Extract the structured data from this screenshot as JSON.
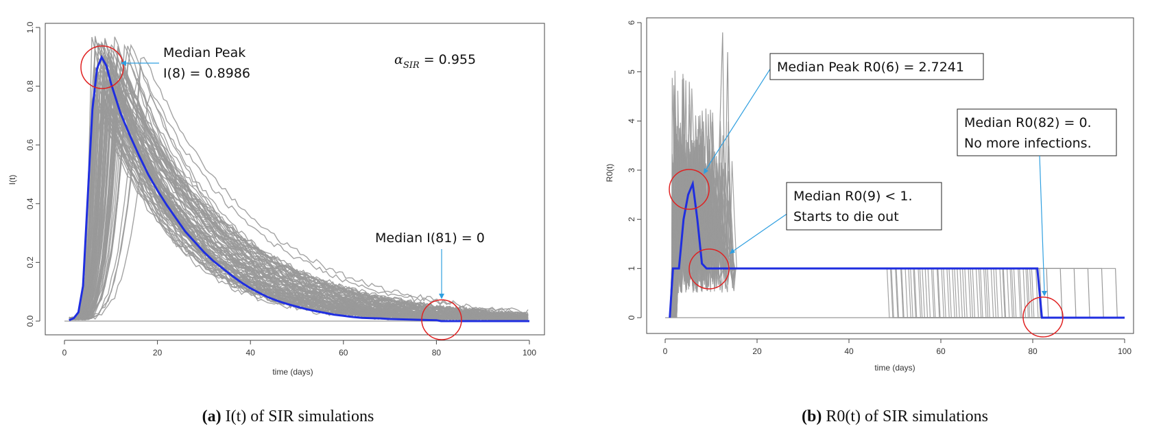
{
  "chart_data": [
    {
      "type": "line",
      "panel": "a",
      "xlabel": "time (days)",
      "ylabel": "I(t)",
      "xlim": [
        0,
        100
      ],
      "ylim": [
        0,
        1.0
      ],
      "xticks": [
        "0",
        "20",
        "40",
        "60",
        "80",
        "100"
      ],
      "xtick_values": [
        0,
        20,
        40,
        60,
        80,
        100
      ],
      "yticks": [
        "0.0",
        "0.2",
        "0.4",
        "0.6",
        "0.8",
        "1.0"
      ],
      "ytick_values": [
        0,
        0.2,
        0.4,
        0.6,
        0.8,
        1.0
      ],
      "series": [
        {
          "name": "Median",
          "color": "#1f2ee0",
          "x": [
            1,
            2,
            3,
            4,
            5,
            6,
            7,
            8,
            9,
            10,
            11,
            12,
            14,
            16,
            18,
            20,
            22,
            24,
            26,
            28,
            30,
            32,
            34,
            36,
            38,
            40,
            42,
            44,
            46,
            48,
            50,
            52,
            54,
            56,
            58,
            60,
            62,
            64,
            66,
            68,
            70,
            75,
            80,
            81,
            85,
            90,
            95,
            100
          ],
          "values": [
            0.003,
            0.01,
            0.03,
            0.12,
            0.42,
            0.72,
            0.86,
            0.8986,
            0.87,
            0.81,
            0.76,
            0.71,
            0.635,
            0.565,
            0.5,
            0.445,
            0.395,
            0.35,
            0.305,
            0.27,
            0.235,
            0.205,
            0.18,
            0.155,
            0.132,
            0.112,
            0.095,
            0.08,
            0.068,
            0.058,
            0.049,
            0.041,
            0.034,
            0.028,
            0.022,
            0.018,
            0.014,
            0.011,
            0.01,
            0.009,
            0.007,
            0.005,
            0.003,
            0.0,
            0.0,
            0.0,
            0.0,
            0.0
          ]
        }
      ],
      "simulation_color": "#999999",
      "annotations": {
        "peak_label_1": "Median Peak",
        "peak_label_2": "I(8) = 0.8986",
        "alpha_label": "α",
        "alpha_sub": "SIR",
        "alpha_value": " = 0.955",
        "end_label": "Median I(81) = 0"
      },
      "caption_letter": "(a)",
      "caption_text": "I(t) of SIR simulations"
    },
    {
      "type": "line",
      "panel": "b",
      "xlabel": "time (days)",
      "ylabel": "R0(t)",
      "xlim": [
        0,
        100
      ],
      "ylim": [
        0,
        6
      ],
      "xticks": [
        "0",
        "20",
        "40",
        "60",
        "80",
        "100"
      ],
      "xtick_values": [
        0,
        20,
        40,
        60,
        80,
        100
      ],
      "yticks": [
        "0",
        "1",
        "2",
        "3",
        "4",
        "5",
        "6"
      ],
      "ytick_values": [
        0,
        1,
        2,
        3,
        4,
        5,
        6
      ],
      "series": [
        {
          "name": "Median",
          "color": "#1f2ee0",
          "x": [
            1,
            1.7,
            2,
            3,
            4,
            5,
            6,
            7,
            8,
            9,
            10,
            20,
            40,
            60,
            81,
            82,
            85,
            90,
            100
          ],
          "values": [
            0,
            1,
            1,
            1,
            2,
            2.5,
            2.7241,
            2.0,
            1.1,
            1.0,
            1.0,
            1.0,
            1.0,
            1.0,
            1.0,
            0.0,
            0.0,
            0.0,
            0.0
          ]
        }
      ],
      "simulation_color": "#999999",
      "annotations": {
        "peak_box": "Median Peak R0(6) = 2.7241",
        "mid_box_1": "Median R0(9) < 1.",
        "mid_box_2": "Starts to die out",
        "end_box_1": "Median R0(82) = 0.",
        "end_box_2": "No more infections."
      },
      "caption_letter": "(b)",
      "caption_text": "R0(t) of SIR simulations"
    }
  ]
}
